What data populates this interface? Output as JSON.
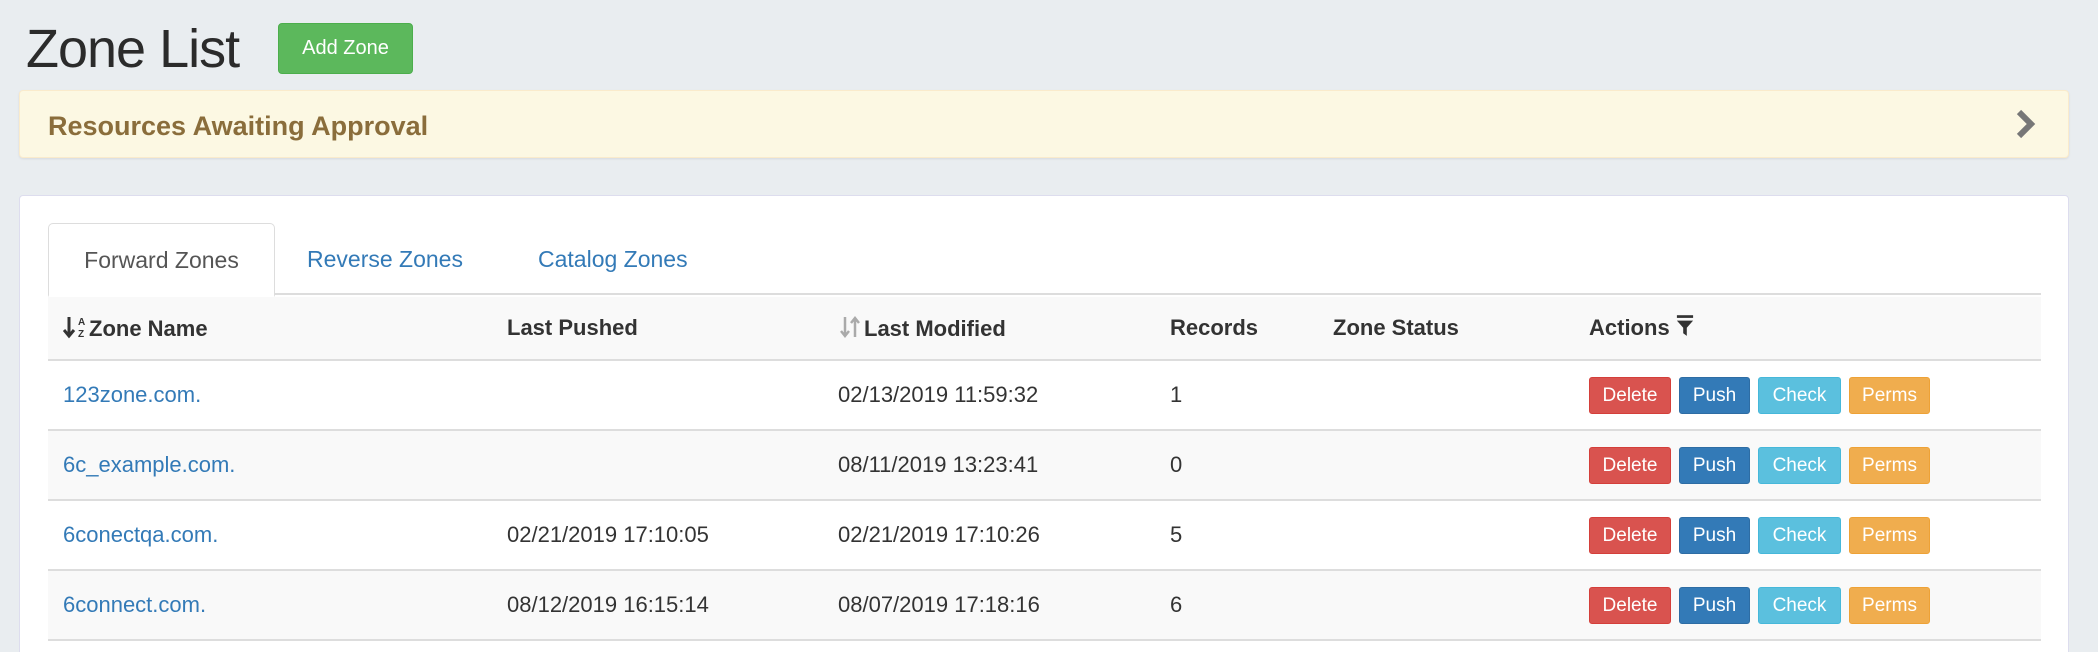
{
  "page": {
    "title": "Zone List",
    "add_button": "Add Zone"
  },
  "approval": {
    "label": "Resources Awaiting Approval",
    "icon": "chevron-right-icon"
  },
  "tabs": [
    {
      "label": "Forward Zones",
      "active": true
    },
    {
      "label": "Reverse Zones"
    },
    {
      "label": "Catalog Zones"
    }
  ],
  "table": {
    "headers": [
      "Zone Name",
      "Last Pushed",
      "Last Modified",
      "Records",
      "Zone Status",
      "Actions"
    ],
    "rows": [
      {
        "name": "123zone.com.",
        "pushed": "",
        "modified": "02/13/2019 11:59:32",
        "records": "1",
        "status": ""
      },
      {
        "name": "6c_example.com.",
        "pushed": "",
        "modified": "08/11/2019 13:23:41",
        "records": "0",
        "status": ""
      },
      {
        "name": "6conectqa.com.",
        "pushed": "02/21/2019 17:10:05",
        "modified": "02/21/2019 17:10:26",
        "records": "5",
        "status": ""
      },
      {
        "name": "6connect.com.",
        "pushed": "08/12/2019 16:15:14",
        "modified": "08/07/2019 17:18:16",
        "records": "6",
        "status": ""
      }
    ],
    "actions": {
      "delete": "Delete",
      "push": "Push",
      "check": "Check",
      "perms": "Perms"
    }
  },
  "colors": {
    "success": "#5cb85c",
    "danger": "#d9534f",
    "primary": "#337ab7",
    "info": "#5bc0de",
    "warning": "#f0ad4e"
  }
}
